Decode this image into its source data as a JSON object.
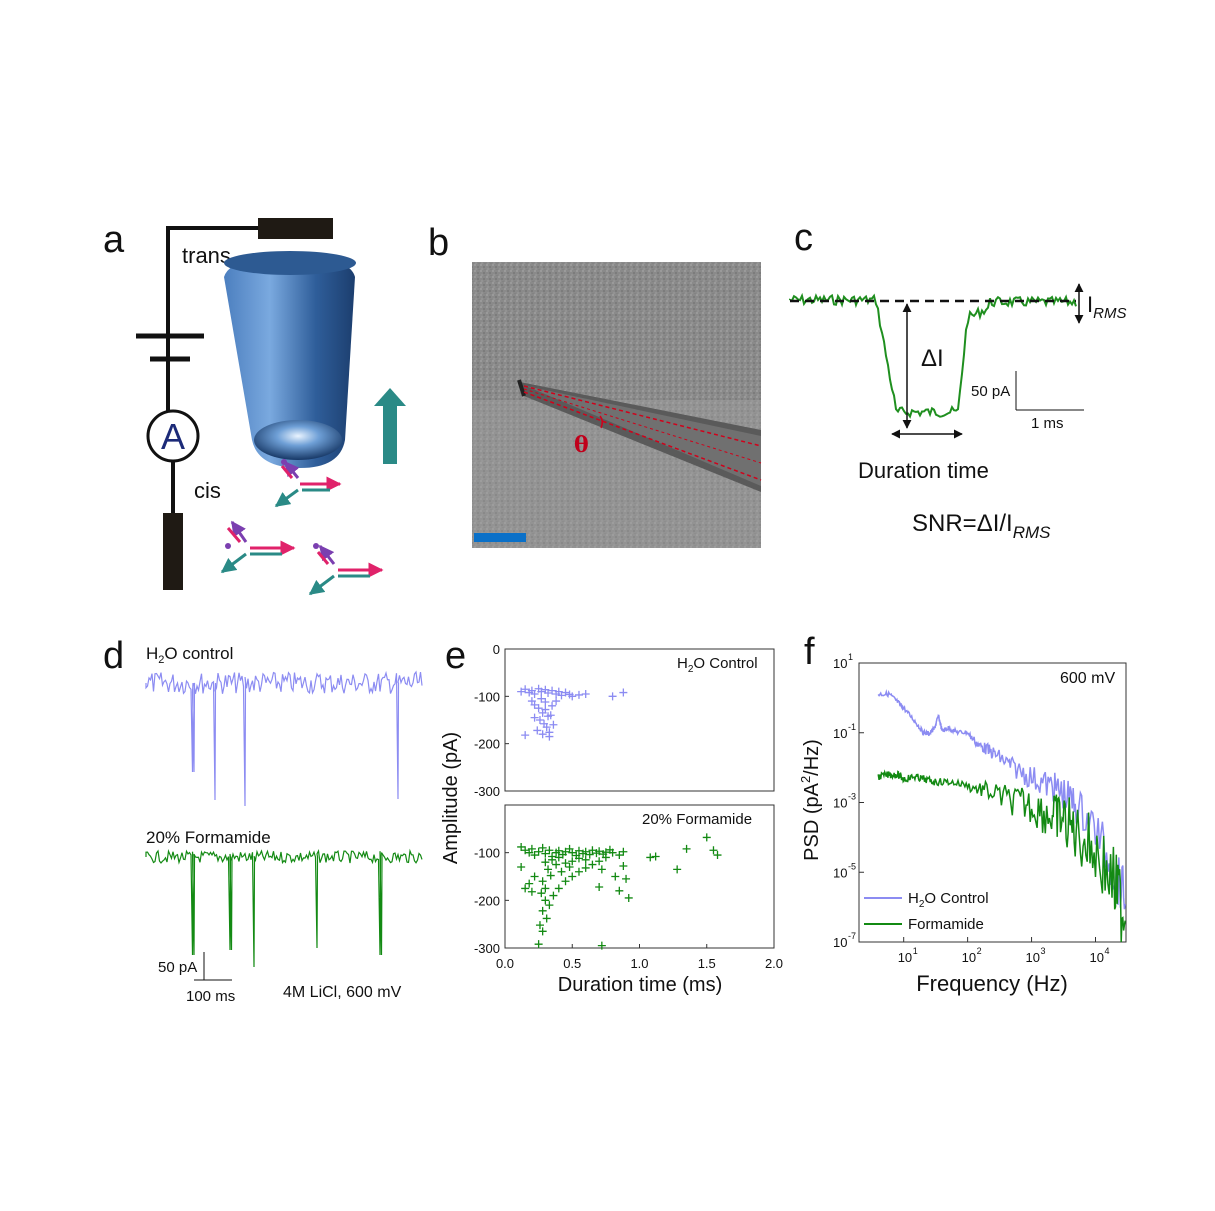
{
  "panel_labels": {
    "a": "a",
    "b": "b",
    "c": "c",
    "d": "d",
    "e": "e",
    "f": "f"
  },
  "panel_a": {
    "trans": "trans",
    "cis": "cis",
    "ammeter": "A"
  },
  "panel_b": {
    "angle": "θ"
  },
  "panel_c": {
    "delta_i": "ΔI",
    "i_rms_main": "I",
    "i_rms_sub": "RMS",
    "scale_current": "50 pA",
    "scale_time": "1 ms",
    "duration": "Duration time",
    "snr_main": "SNR=ΔI/I",
    "snr_sub": "RMS"
  },
  "panel_d": {
    "trace1_pre": "H",
    "trace1_sub": "2",
    "trace1_post": "O control",
    "trace2": "20% Formamide",
    "scale_current": "50 pA",
    "scale_time": "100 ms",
    "conditions": "4M LiCl, 600 mV"
  },
  "colors": {
    "control": "#8c8cf2",
    "formamide": "#138a13",
    "teal": "#2a8a86",
    "pink": "#e0226a",
    "purple": "#7b3fb0"
  },
  "chart_data": [
    {
      "type": "scatter",
      "panel": "e",
      "ylabel": "Amplitude (pA)",
      "xlabel": "Duration time (ms)",
      "xlim": [
        0,
        2.0
      ],
      "x_ticks": [
        "0.0",
        "0.5",
        "1.0",
        "1.5",
        "2.0"
      ],
      "subplots": [
        {
          "legend_pre": "H",
          "legend_sub": "2",
          "legend_post": "O Control",
          "color": "#8c8cf2",
          "ylim": [
            -300,
            0
          ],
          "y_ticks": [
            "0",
            "-100",
            "-200",
            "-300"
          ],
          "points": [
            [
              0.12,
              -90
            ],
            [
              0.15,
              -85
            ],
            [
              0.18,
              -92
            ],
            [
              0.2,
              -88
            ],
            [
              0.22,
              -95
            ],
            [
              0.25,
              -84
            ],
            [
              0.27,
              -90
            ],
            [
              0.3,
              -86
            ],
            [
              0.32,
              -93
            ],
            [
              0.35,
              -88
            ],
            [
              0.38,
              -95
            ],
            [
              0.4,
              -90
            ],
            [
              0.42,
              -98
            ],
            [
              0.45,
              -92
            ],
            [
              0.48,
              -96
            ],
            [
              0.5,
              -100
            ],
            [
              0.55,
              -97
            ],
            [
              0.6,
              -95
            ],
            [
              0.8,
              -100
            ],
            [
              0.88,
              -92
            ],
            [
              0.2,
              -110
            ],
            [
              0.22,
              -118
            ],
            [
              0.25,
              -125
            ],
            [
              0.28,
              -135
            ],
            [
              0.3,
              -128
            ],
            [
              0.32,
              -142
            ],
            [
              0.26,
              -150
            ],
            [
              0.29,
              -158
            ],
            [
              0.31,
              -165
            ],
            [
              0.24,
              -172
            ],
            [
              0.28,
              -180
            ],
            [
              0.33,
              -176
            ],
            [
              0.15,
              -182
            ],
            [
              0.3,
              -112
            ],
            [
              0.35,
              -120
            ],
            [
              0.38,
              -110
            ],
            [
              0.27,
              -105
            ],
            [
              0.34,
              -140
            ],
            [
              0.36,
              -160
            ],
            [
              0.22,
              -145
            ],
            [
              0.33,
              -185
            ]
          ]
        },
        {
          "legend_pre": "",
          "legend_sub": "",
          "legend_post": "20% Formamide",
          "color": "#138a13",
          "ylim": [
            -300,
            0
          ],
          "y_ticks": [
            "-100",
            "-200",
            "-300"
          ],
          "points": [
            [
              0.12,
              -88
            ],
            [
              0.15,
              -95
            ],
            [
              0.18,
              -100
            ],
            [
              0.2,
              -92
            ],
            [
              0.22,
              -105
            ],
            [
              0.25,
              -98
            ],
            [
              0.28,
              -90
            ],
            [
              0.3,
              -102
            ],
            [
              0.33,
              -95
            ],
            [
              0.35,
              -108
            ],
            [
              0.38,
              -100
            ],
            [
              0.4,
              -96
            ],
            [
              0.43,
              -104
            ],
            [
              0.45,
              -98
            ],
            [
              0.48,
              -92
            ],
            [
              0.5,
              -100
            ],
            [
              0.53,
              -106
            ],
            [
              0.55,
              -96
            ],
            [
              0.58,
              -102
            ],
            [
              0.6,
              -98
            ],
            [
              0.63,
              -104
            ],
            [
              0.65,
              -95
            ],
            [
              0.68,
              -101
            ],
            [
              0.7,
              -97
            ],
            [
              0.73,
              -103
            ],
            [
              0.75,
              -99
            ],
            [
              0.78,
              -94
            ],
            [
              0.8,
              -100
            ],
            [
              0.85,
              -105
            ],
            [
              0.88,
              -98
            ],
            [
              0.75,
              -110
            ],
            [
              0.7,
              -118
            ],
            [
              0.65,
              -125
            ],
            [
              0.6,
              -132
            ],
            [
              0.55,
              -140
            ],
            [
              0.5,
              -150
            ],
            [
              0.45,
              -160
            ],
            [
              0.4,
              -175
            ],
            [
              0.36,
              -190
            ],
            [
              0.3,
              -120
            ],
            [
              0.32,
              -135
            ],
            [
              0.34,
              -148
            ],
            [
              0.28,
              -160
            ],
            [
              0.3,
              -175
            ],
            [
              0.27,
              -185
            ],
            [
              0.3,
              -200
            ],
            [
              0.33,
              -210
            ],
            [
              0.28,
              -222
            ],
            [
              0.31,
              -238
            ],
            [
              0.26,
              -252
            ],
            [
              0.28,
              -265
            ],
            [
              0.25,
              -292
            ],
            [
              0.22,
              -150
            ],
            [
              0.18,
              -165
            ],
            [
              0.15,
              -175
            ],
            [
              0.12,
              -130
            ],
            [
              0.2,
              -182
            ],
            [
              0.35,
              -115
            ],
            [
              0.38,
              -125
            ],
            [
              0.42,
              -140
            ],
            [
              0.72,
              -135
            ],
            [
              0.82,
              -150
            ],
            [
              0.9,
              -155
            ],
            [
              0.85,
              -180
            ],
            [
              0.92,
              -195
            ],
            [
              0.7,
              -172
            ],
            [
              0.88,
              -128
            ],
            [
              1.08,
              -110
            ],
            [
              1.12,
              -108
            ],
            [
              1.28,
              -135
            ],
            [
              1.5,
              -68
            ],
            [
              1.55,
              -95
            ],
            [
              1.58,
              -105
            ],
            [
              1.35,
              -92
            ],
            [
              0.72,
              -295
            ],
            [
              0.5,
              -118
            ],
            [
              0.45,
              -122
            ],
            [
              0.55,
              -112
            ],
            [
              0.6,
              -115
            ],
            [
              0.48,
              -130
            ],
            [
              0.4,
              -110
            ]
          ]
        }
      ]
    },
    {
      "type": "line",
      "panel": "f",
      "annotation": "600 mV",
      "ylabel": "PSD (pA²/Hz)",
      "ylabel_pre": "PSD (pA",
      "ylabel_sup": "2",
      "ylabel_post": "/Hz)",
      "xlabel": "Frequency (Hz)",
      "xscale": "log",
      "yscale": "log",
      "xlim": [
        2,
        30000
      ],
      "ylim": [
        1e-07,
        10
      ],
      "x_ticks": [
        {
          "base": "10",
          "exp": "1"
        },
        {
          "base": "10",
          "exp": "2"
        },
        {
          "base": "10",
          "exp": "3"
        },
        {
          "base": "10",
          "exp": "4"
        }
      ],
      "y_ticks": [
        {
          "base": "10",
          "exp": "1"
        },
        {
          "base": "10",
          "exp": "-1"
        },
        {
          "base": "10",
          "exp": "-3"
        },
        {
          "base": "10",
          "exp": "-5"
        },
        {
          "base": "10",
          "exp": "-7"
        }
      ],
      "series": [
        {
          "name_pre": "H",
          "name_sub": "2",
          "name_post": "O Control",
          "name": "H2O Control",
          "color": "#8c8cf2",
          "x": [
            4,
            6,
            8,
            10,
            15,
            20,
            25,
            30,
            35,
            40,
            50,
            70,
            100,
            150,
            200,
            300,
            500,
            1000,
            2000,
            3000,
            5000,
            10000,
            20000,
            30000
          ],
          "y": [
            1.5,
            1.5,
            0.9,
            0.6,
            0.25,
            0.12,
            0.11,
            0.15,
            0.35,
            0.13,
            0.16,
            0.12,
            0.12,
            0.06,
            0.05,
            0.035,
            0.02,
            0.012,
            0.008,
            0.006,
            0.003,
            0.0008,
            5e-05,
            1e-05
          ]
        },
        {
          "name": "Formamide",
          "color": "#138a13",
          "x": [
            4,
            6,
            8,
            10,
            15,
            20,
            30,
            50,
            100,
            200,
            500,
            1000,
            2000,
            3000,
            5000,
            10000,
            20000,
            30000
          ],
          "y": [
            0.007,
            0.008,
            0.008,
            0.006,
            0.007,
            0.006,
            0.005,
            0.005,
            0.004,
            0.004,
            0.003,
            0.003,
            0.002,
            0.002,
            0.001,
            0.0004,
            5e-05,
            8e-06
          ]
        }
      ]
    }
  ]
}
